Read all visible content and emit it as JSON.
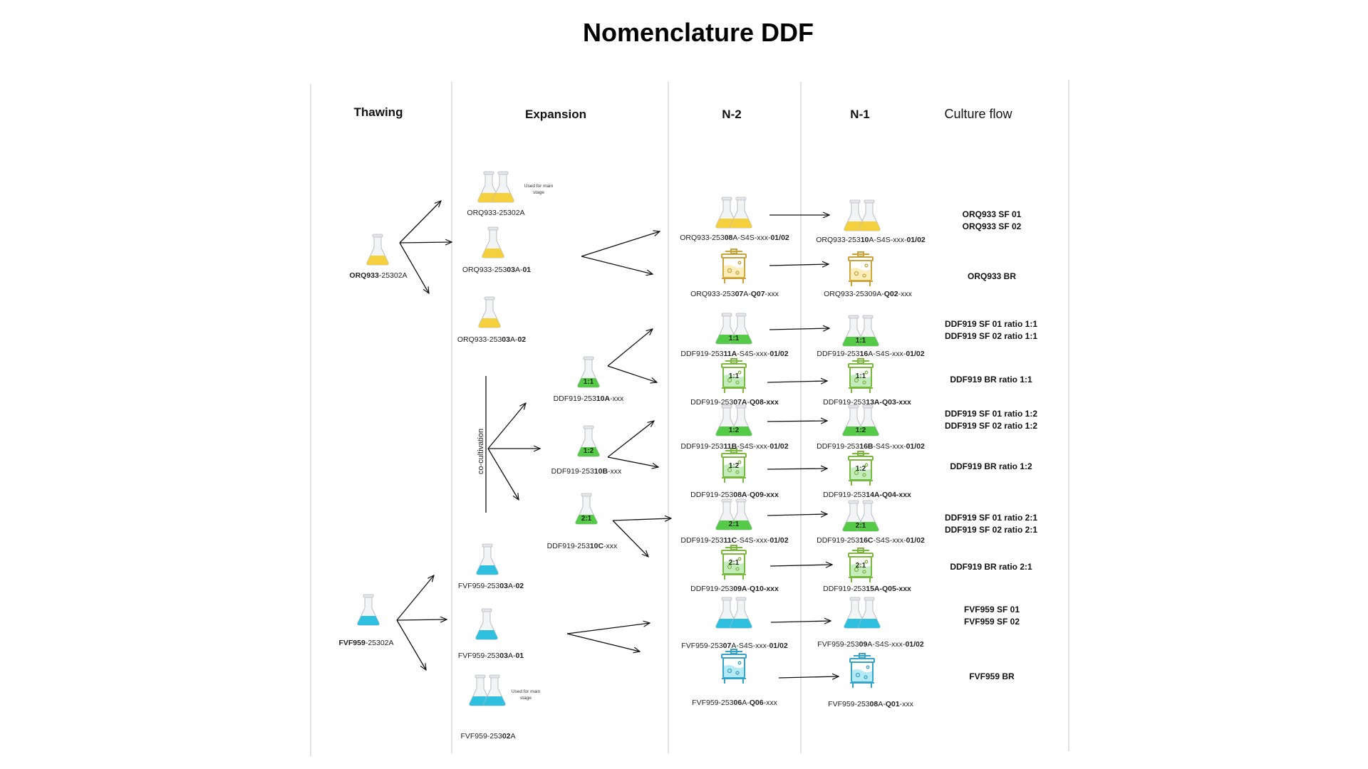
{
  "title": "Nomenclature DDF",
  "columns": {
    "thawing": "Thawing",
    "expansion": "Expansion",
    "n2": "N-2",
    "n1": "N-1",
    "culture_flow": "Culture flow"
  },
  "colors": {
    "orq": "#f4cf3e",
    "ddf": "#55c948",
    "fvf": "#2fc0e0",
    "orq_outline": "#c9a23a",
    "ddf_outline": "#7cb83d",
    "fvf_outline": "#35a2c8"
  },
  "co_cultivation": "co-cultivation",
  "notes": {
    "orq_main": [
      "Used for main",
      "stage"
    ],
    "fvf_main": [
      "Used for main",
      "stage"
    ]
  },
  "thawing": {
    "orq": {
      "pre": "",
      "bold": "ORQ933",
      "post": "-25302A"
    },
    "fvf": {
      "pre": "",
      "bold": "FVF959",
      "post": "-25302A"
    }
  },
  "expansion": {
    "orq_main": {
      "pre": "ORQ933-25302A",
      "bold": "",
      "post": ""
    },
    "orq_01": {
      "pre": "ORQ933-253",
      "bold": "03",
      "post": "A-",
      "bold2": "01"
    },
    "orq_02": {
      "pre": "ORQ933-253",
      "bold": "03",
      "post": "A-",
      "bold2": "02"
    },
    "ddf_a": {
      "pre": "DDF919-253",
      "bold": "10A",
      "post": "-xxx",
      "ratio": "1:1"
    },
    "ddf_b": {
      "pre": "DDF919-253",
      "bold": "10B",
      "post": "-xxx",
      "ratio": "1:2"
    },
    "ddf_c": {
      "pre": "DDF919-253",
      "bold": "10C",
      "post": "-xxx",
      "ratio": "2:1"
    },
    "fvf_02": {
      "pre": "FVF959-253",
      "bold": "03",
      "post": "A-",
      "bold2": "02"
    },
    "fvf_01": {
      "pre": "FVF959-253",
      "bold": "03",
      "post": "A-",
      "bold2": "01"
    },
    "fvf_main": {
      "pre": "FVF959-253",
      "bold": "02",
      "post": "A"
    }
  },
  "n2": {
    "orq_sf": {
      "pre": "ORQ933-253",
      "bold": "08",
      "post": "A-S4S-xxx-",
      "bold2": "01/02"
    },
    "orq_br": {
      "pre": "ORQ933-253",
      "bold": "07",
      "post": "A-",
      "bold2": "Q07",
      "post2": "-xxx"
    },
    "ddf_sf_11": {
      "pre": "DDF919-253",
      "bold": "11A",
      "post": "-S4S-xxx-",
      "bold2": "01/02",
      "ratio": "1:1"
    },
    "ddf_br_11": {
      "pre": "DDF919-253",
      "bold": "07A",
      "post": "-",
      "bold2": "Q08-xxx",
      "ratio": "1:1"
    },
    "ddf_sf_12": {
      "pre": "DDF919-253",
      "bold": "11B",
      "post": "-S4S-xxx-",
      "bold2": "01/02",
      "ratio": "1:2"
    },
    "ddf_br_12": {
      "pre": "DDF919-253",
      "bold": "08A",
      "post": "-",
      "bold2": "Q09-xxx",
      "ratio": "1:2"
    },
    "ddf_sf_21": {
      "pre": "DDF919-253",
      "bold": "11C",
      "post": "-S4S-xxx-",
      "bold2": "01/02",
      "ratio": "2:1"
    },
    "ddf_br_21": {
      "pre": "DDF919-253",
      "bold": "09A",
      "post": "-",
      "bold2": "Q10-xxx",
      "ratio": "2:1"
    },
    "fvf_sf": {
      "pre": "FVF959-253",
      "bold": "07",
      "post": "A-S4S-xxx-",
      "bold2": "01/02"
    },
    "fvf_br": {
      "pre": "FVF959-253",
      "bold": "06",
      "post": "A-",
      "bold2": "Q06",
      "post2": "-xxx"
    }
  },
  "n1": {
    "orq_sf": {
      "pre": "ORQ933-253",
      "bold": "10",
      "post": "A-S4S-xxx-",
      "bold2": "01/02"
    },
    "orq_br": {
      "pre": "ORQ933-25309A-",
      "bold": "Q02",
      "post": "-xxx"
    },
    "ddf_sf_11": {
      "pre": "DDF919-253",
      "bold": "16",
      "post": "A-S4S-xxx-",
      "bold2": "01/02",
      "ratio": "1:1"
    },
    "ddf_br_11": {
      "pre": "DDF919-253",
      "bold": "13A-Q03-xxx",
      "post": "",
      "ratio": "1:1"
    },
    "ddf_sf_12": {
      "pre": "DDF919-253",
      "bold": "16B",
      "post": "-S4S-xxx-",
      "bold2": "01/02",
      "ratio": "1:2"
    },
    "ddf_br_12": {
      "pre": "DDF919-253",
      "bold": "14A-Q04-xxx",
      "post": "",
      "ratio": "1:2"
    },
    "ddf_sf_21": {
      "pre": "DDF919-253",
      "bold": "16C",
      "post": "-S4S-xxx-",
      "bold2": "01/02",
      "ratio": "2:1"
    },
    "ddf_br_21": {
      "pre": "DDF919-253",
      "bold": "15A-Q05-xxx",
      "post": "",
      "ratio": "2:1"
    },
    "fvf_sf": {
      "pre": "FVF959-253",
      "bold": "09",
      "post": "A-S4S-xxx-",
      "bold2": "01/02"
    },
    "fvf_br": {
      "pre": "FVF959-253",
      "bold": "08",
      "post": "A-",
      "bold2": "Q01",
      "post2": "-xxx"
    }
  },
  "flow": {
    "orq_sf": [
      "ORQ933 SF 01",
      "ORQ933 SF 02"
    ],
    "orq_br": [
      "ORQ933 BR"
    ],
    "ddf_sf_11": [
      "DDF919 SF 01 ratio 1:1",
      "DDF919 SF 02 ratio 1:1"
    ],
    "ddf_br_11": [
      "DDF919 BR ratio 1:1"
    ],
    "ddf_sf_12": [
      "DDF919 SF 01 ratio 1:2",
      "DDF919 SF 02 ratio 1:2"
    ],
    "ddf_br_12": [
      "DDF919 BR ratio 1:2"
    ],
    "ddf_sf_21": [
      "DDF919 SF 01 ratio 2:1",
      "DDF919 SF 02 ratio 2:1"
    ],
    "ddf_br_21": [
      "DDF919 BR ratio 2:1"
    ],
    "fvf_sf": [
      "FVF959 SF 01",
      "FVF959 SF 02"
    ],
    "fvf_br": [
      "FVF959 BR"
    ]
  }
}
